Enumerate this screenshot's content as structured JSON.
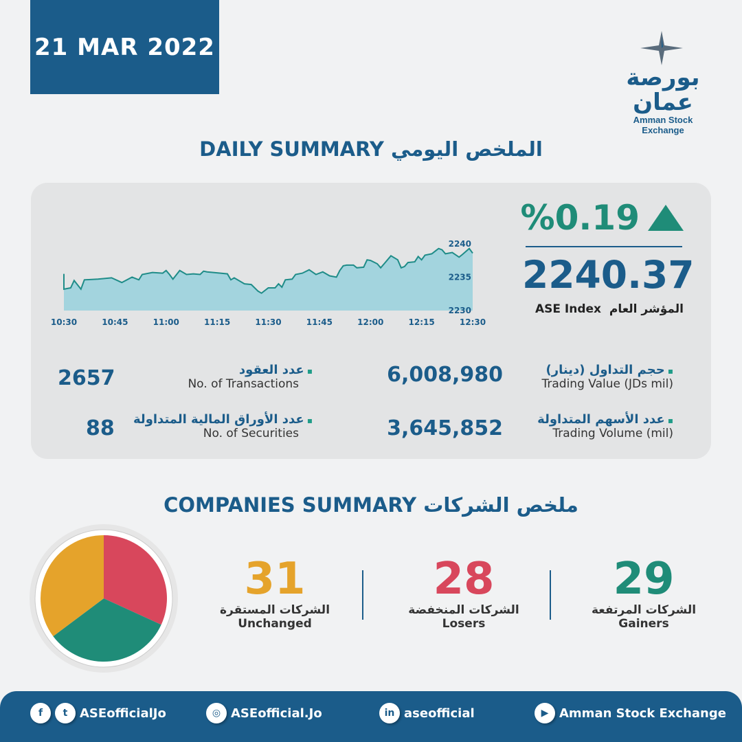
{
  "date": "21 MAR 2022",
  "logo": {
    "arabic": "بورصة عمان",
    "english": "Amman Stock Exchange"
  },
  "daily_title": "DAILY SUMMARY الملخص اليومي",
  "index": {
    "change_pct": "%0.19",
    "direction": "up",
    "value": "2240.37",
    "label_en": "ASE Index",
    "label_ar": "المؤشر العام"
  },
  "stats": [
    {
      "ar": "حجم التداول (دينار)",
      "en": "Trading Value (JDs mil)",
      "value": "6,008,980"
    },
    {
      "ar": "عدد الأسهم المتداولة",
      "en": "Trading Volume (mil)",
      "value": "3,645,852"
    },
    {
      "ar": "عدد العقود",
      "en": "No. of Transactions",
      "value": "2657"
    },
    {
      "ar": "عدد الأوراق المالية المتداولة",
      "en": "No. of Securities",
      "value": "88"
    }
  ],
  "companies_title": "COMPANIES SUMMARY ملخص الشركات",
  "companies": [
    {
      "value": "31",
      "ar": "الشركات المستقرة",
      "en": "Unchanged",
      "color": "#e5a32b"
    },
    {
      "value": "28",
      "ar": "الشركات المنخفضة",
      "en": "Losers",
      "color": "#d8475c"
    },
    {
      "value": "29",
      "ar": "الشركات المرتفعة",
      "en": "Gainers",
      "color": "#1f8c78"
    }
  ],
  "footer": [
    {
      "icons": [
        "facebook-icon",
        "twitter-icon"
      ],
      "label": "ASEofficialJo"
    },
    {
      "icons": [
        "instagram-icon"
      ],
      "label": "ASEofficial.Jo"
    },
    {
      "icons": [
        "linkedin-icon"
      ],
      "label": "aseofficial"
    },
    {
      "icons": [
        "youtube-icon"
      ],
      "label": "Amman Stock Exchange"
    }
  ],
  "chart_data": {
    "type": "area",
    "x_ticks": [
      "10:30",
      "10:45",
      "11:00",
      "11:15",
      "11:30",
      "11:45",
      "12:00",
      "12:15",
      "12:30"
    ],
    "y_ticks": [
      2230,
      2235,
      2240
    ],
    "ylim": [
      2230,
      2240.5
    ],
    "colors": {
      "line": "#1f8c88",
      "fill": "#a3d4de"
    },
    "points": [
      [
        "10:30",
        2235.5
      ],
      [
        "10:30",
        2233.2
      ],
      [
        "10:32",
        2233.4
      ],
      [
        "10:33",
        2234.5
      ],
      [
        "10:35",
        2233.2
      ],
      [
        "10:36",
        2234.6
      ],
      [
        "10:40",
        2234.7
      ],
      [
        "10:44",
        2234.9
      ],
      [
        "10:47",
        2234.2
      ],
      [
        "10:50",
        2235.0
      ],
      [
        "10:52",
        2234.6
      ],
      [
        "10:53",
        2235.4
      ],
      [
        "10:56",
        2235.7
      ],
      [
        "10:59",
        2235.6
      ],
      [
        "11:00",
        2236.0
      ],
      [
        "11:01",
        2235.4
      ],
      [
        "11:02",
        2234.7
      ],
      [
        "11:04",
        2236.0
      ],
      [
        "11:06",
        2235.4
      ],
      [
        "11:08",
        2235.5
      ],
      [
        "11:10",
        2235.4
      ],
      [
        "11:11",
        2235.9
      ],
      [
        "11:12",
        2235.8
      ],
      [
        "11:16",
        2235.6
      ],
      [
        "11:18",
        2235.5
      ],
      [
        "11:19",
        2234.6
      ],
      [
        "11:20",
        2234.9
      ],
      [
        "11:23",
        2234.0
      ],
      [
        "11:25",
        2233.9
      ],
      [
        "11:27",
        2232.9
      ],
      [
        "11:28",
        2232.6
      ],
      [
        "11:30",
        2233.4
      ],
      [
        "11:32",
        2233.4
      ],
      [
        "11:33",
        2234.0
      ],
      [
        "11:34",
        2233.5
      ],
      [
        "11:35",
        2234.6
      ],
      [
        "11:37",
        2234.7
      ],
      [
        "11:38",
        2235.4
      ],
      [
        "11:40",
        2235.6
      ],
      [
        "11:42",
        2236.1
      ],
      [
        "11:44",
        2235.4
      ],
      [
        "11:46",
        2235.8
      ],
      [
        "11:48",
        2235.2
      ],
      [
        "11:50",
        2235.0
      ],
      [
        "11:51",
        2236.0
      ],
      [
        "11:52",
        2236.7
      ],
      [
        "11:53",
        2236.8
      ],
      [
        "11:55",
        2236.8
      ],
      [
        "11:56",
        2236.4
      ],
      [
        "11:58",
        2236.5
      ],
      [
        "11:59",
        2237.6
      ],
      [
        "12:00",
        2237.5
      ],
      [
        "12:02",
        2237.0
      ],
      [
        "12:03",
        2236.4
      ],
      [
        "12:04",
        2237.0
      ],
      [
        "12:06",
        2238.2
      ],
      [
        "12:08",
        2237.6
      ],
      [
        "12:09",
        2236.4
      ],
      [
        "12:10",
        2236.6
      ],
      [
        "12:11",
        2237.2
      ],
      [
        "12:13",
        2237.3
      ],
      [
        "12:14",
        2238.1
      ],
      [
        "12:15",
        2237.6
      ],
      [
        "12:16",
        2238.3
      ],
      [
        "12:18",
        2238.5
      ],
      [
        "12:20",
        2239.3
      ],
      [
        "12:21",
        2239.1
      ],
      [
        "12:22",
        2238.5
      ],
      [
        "12:24",
        2238.7
      ],
      [
        "12:26",
        2238.0
      ],
      [
        "12:27",
        2238.4
      ],
      [
        "12:29",
        2239.3
      ],
      [
        "12:30",
        2238.6
      ]
    ]
  }
}
